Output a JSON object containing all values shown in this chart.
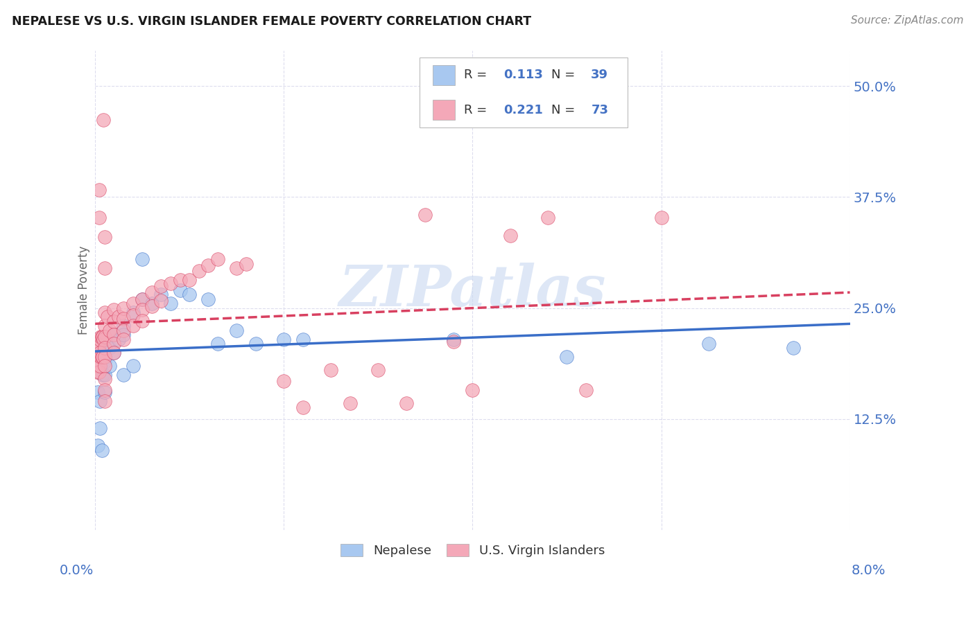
{
  "title": "NEPALESE VS U.S. VIRGIN ISLANDER FEMALE POVERTY CORRELATION CHART",
  "source": "Source: ZipAtlas.com",
  "ylabel": "Female Poverty",
  "ytick_values": [
    0.125,
    0.25,
    0.375,
    0.5
  ],
  "ytick_labels": [
    "12.5%",
    "25.0%",
    "37.5%",
    "50.0%"
  ],
  "xlim": [
    0.0,
    0.08
  ],
  "ylim": [
    0.0,
    0.54
  ],
  "blue_color": "#A8C8F0",
  "pink_color": "#F4A8B8",
  "blue_line_color": "#3A6EC8",
  "pink_line_color": "#D84060",
  "axis_tick_color": "#4472C4",
  "grid_color": "#DDDDEE",
  "watermark_color": "#C8D8F0",
  "blue_r": "0.113",
  "blue_n": "39",
  "pink_r": "0.221",
  "pink_n": "73",
  "blue_x": [
    0.0005,
    0.0005,
    0.0005,
    0.0005,
    0.001,
    0.001,
    0.001,
    0.001,
    0.001,
    0.001,
    0.0015,
    0.0015,
    0.0015,
    0.002,
    0.002,
    0.002,
    0.002,
    0.003,
    0.003,
    0.003,
    0.004,
    0.004,
    0.005,
    0.005,
    0.006,
    0.007,
    0.008,
    0.009,
    0.01,
    0.012,
    0.013,
    0.015,
    0.017,
    0.02,
    0.022,
    0.038,
    0.05,
    0.065,
    0.074
  ],
  "blue_y": [
    0.155,
    0.145,
    0.135,
    0.115,
    0.195,
    0.185,
    0.175,
    0.165,
    0.155,
    0.1,
    0.205,
    0.195,
    0.175,
    0.215,
    0.205,
    0.195,
    0.175,
    0.23,
    0.22,
    0.185,
    0.24,
    0.185,
    0.3,
    0.26,
    0.25,
    0.265,
    0.25,
    0.265,
    0.265,
    0.255,
    0.21,
    0.22,
    0.21,
    0.215,
    0.215,
    0.215,
    0.195,
    0.21,
    0.205
  ],
  "pink_x": [
    0.0002,
    0.0002,
    0.0003,
    0.0003,
    0.0003,
    0.0004,
    0.0004,
    0.0005,
    0.0005,
    0.0005,
    0.0006,
    0.0006,
    0.0007,
    0.0007,
    0.0008,
    0.0008,
    0.001,
    0.001,
    0.001,
    0.001,
    0.001,
    0.001,
    0.001,
    0.001,
    0.001,
    0.001,
    0.0015,
    0.0015,
    0.002,
    0.002,
    0.002,
    0.002,
    0.002,
    0.003,
    0.003,
    0.003,
    0.003,
    0.004,
    0.004,
    0.004,
    0.005,
    0.005,
    0.005,
    0.006,
    0.006,
    0.007,
    0.007,
    0.008,
    0.009,
    0.01,
    0.011,
    0.012,
    0.013,
    0.015,
    0.016,
    0.02,
    0.022,
    0.027,
    0.03,
    0.033,
    0.038,
    0.04,
    0.044,
    0.05,
    0.055,
    0.06,
    0.0005,
    0.0005,
    0.0005,
    0.001,
    0.001,
    0.001,
    0.001
  ],
  "pink_y": [
    0.195,
    0.175,
    0.205,
    0.185,
    0.165,
    0.205,
    0.175,
    0.21,
    0.2,
    0.185,
    0.215,
    0.195,
    0.215,
    0.195,
    0.215,
    0.195,
    0.24,
    0.23,
    0.22,
    0.21,
    0.2,
    0.19,
    0.18,
    0.165,
    0.155,
    0.145,
    0.235,
    0.22,
    0.24,
    0.23,
    0.22,
    0.21,
    0.2,
    0.245,
    0.235,
    0.225,
    0.215,
    0.25,
    0.24,
    0.23,
    0.255,
    0.245,
    0.235,
    0.265,
    0.25,
    0.27,
    0.255,
    0.275,
    0.28,
    0.28,
    0.29,
    0.295,
    0.3,
    0.29,
    0.295,
    0.165,
    0.135,
    0.175,
    0.14,
    0.175,
    0.14,
    0.35,
    0.21,
    0.155,
    0.33,
    0.35,
    0.38,
    0.35,
    0.46,
    0.33,
    0.29,
    0.16,
    0.215
  ]
}
